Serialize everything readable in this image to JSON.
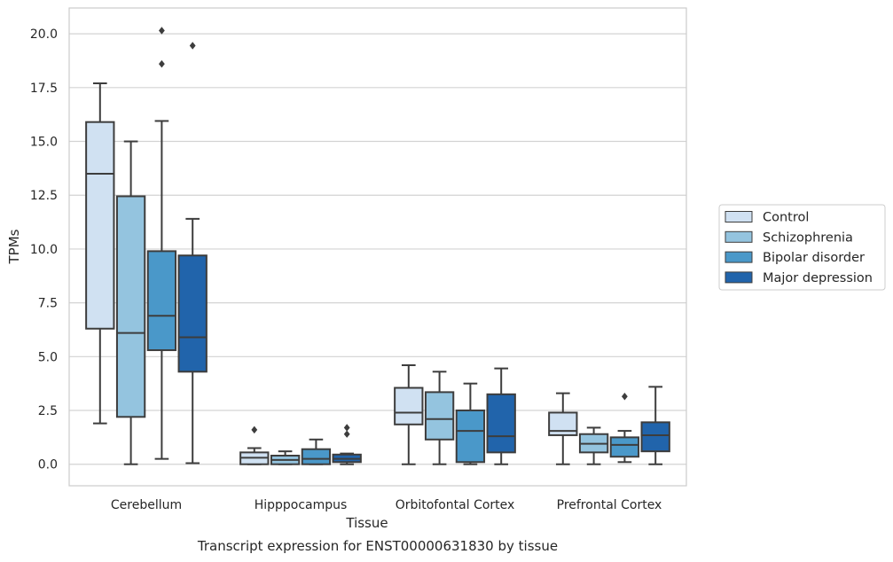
{
  "chart_data": {
    "type": "boxplot",
    "caption": "Transcript expression for ENST00000631830 by tissue",
    "xlabel": "Tissue",
    "ylabel": "TPMs",
    "ylim": [
      -1,
      21.2
    ],
    "yticks": [
      0.0,
      2.5,
      5.0,
      7.5,
      10.0,
      12.5,
      15.0,
      17.5,
      20.0
    ],
    "ytick_labels": [
      "0.0",
      "2.5",
      "5.0",
      "7.5",
      "10.0",
      "12.5",
      "15.0",
      "17.5",
      "20.0"
    ],
    "grid": "horizontal",
    "legend_position": "right",
    "categories": [
      "Cerebellum",
      "Hipppocampus",
      "Orbitofontal Cortex",
      "Prefrontal Cortex"
    ],
    "series": [
      {
        "name": "Control",
        "color": "#d0e1f2",
        "boxes": [
          {
            "whislo": 1.9,
            "q1": 6.3,
            "med": 13.5,
            "q3": 15.9,
            "whishi": 17.7,
            "fliers": []
          },
          {
            "whislo": 0.0,
            "q1": 0.0,
            "med": 0.3,
            "q3": 0.55,
            "whishi": 0.75,
            "fliers": [
              1.6
            ]
          },
          {
            "whislo": 0.0,
            "q1": 1.85,
            "med": 2.4,
            "q3": 3.55,
            "whishi": 4.6,
            "fliers": []
          },
          {
            "whislo": 0.0,
            "q1": 1.35,
            "med": 1.55,
            "q3": 2.4,
            "whishi": 3.3,
            "fliers": []
          }
        ]
      },
      {
        "name": "Schizophrenia",
        "color": "#94c4df",
        "boxes": [
          {
            "whislo": 0.0,
            "q1": 2.2,
            "med": 6.1,
            "q3": 12.45,
            "whishi": 15.0,
            "fliers": []
          },
          {
            "whislo": 0.0,
            "q1": 0.0,
            "med": 0.2,
            "q3": 0.4,
            "whishi": 0.6,
            "fliers": []
          },
          {
            "whislo": 0.0,
            "q1": 1.15,
            "med": 2.1,
            "q3": 3.35,
            "whishi": 4.3,
            "fliers": []
          },
          {
            "whislo": 0.0,
            "q1": 0.55,
            "med": 0.95,
            "q3": 1.4,
            "whishi": 1.7,
            "fliers": []
          }
        ]
      },
      {
        "name": "Bipolar disorder",
        "color": "#4a98c9",
        "boxes": [
          {
            "whislo": 0.25,
            "q1": 5.3,
            "med": 6.9,
            "q3": 9.9,
            "whishi": 15.95,
            "fliers": [
              18.6,
              20.15
            ]
          },
          {
            "whislo": 0.0,
            "q1": 0.0,
            "med": 0.25,
            "q3": 0.7,
            "whishi": 1.15,
            "fliers": []
          },
          {
            "whislo": 0.0,
            "q1": 0.1,
            "med": 1.55,
            "q3": 2.5,
            "whishi": 3.75,
            "fliers": []
          },
          {
            "whislo": 0.1,
            "q1": 0.35,
            "med": 0.9,
            "q3": 1.25,
            "whishi": 1.55,
            "fliers": [
              3.15
            ]
          }
        ]
      },
      {
        "name": "Major depression",
        "color": "#2164ab",
        "boxes": [
          {
            "whislo": 0.05,
            "q1": 4.3,
            "med": 5.9,
            "q3": 9.7,
            "whishi": 11.4,
            "fliers": [
              19.45
            ]
          },
          {
            "whislo": 0.0,
            "q1": 0.1,
            "med": 0.25,
            "q3": 0.45,
            "whishi": 0.5,
            "fliers": [
              1.4,
              1.7
            ]
          },
          {
            "whislo": 0.0,
            "q1": 0.55,
            "med": 1.3,
            "q3": 3.25,
            "whishi": 4.45,
            "fliers": []
          },
          {
            "whislo": 0.0,
            "q1": 0.6,
            "med": 1.35,
            "q3": 1.95,
            "whishi": 3.6,
            "fliers": []
          }
        ]
      }
    ]
  }
}
